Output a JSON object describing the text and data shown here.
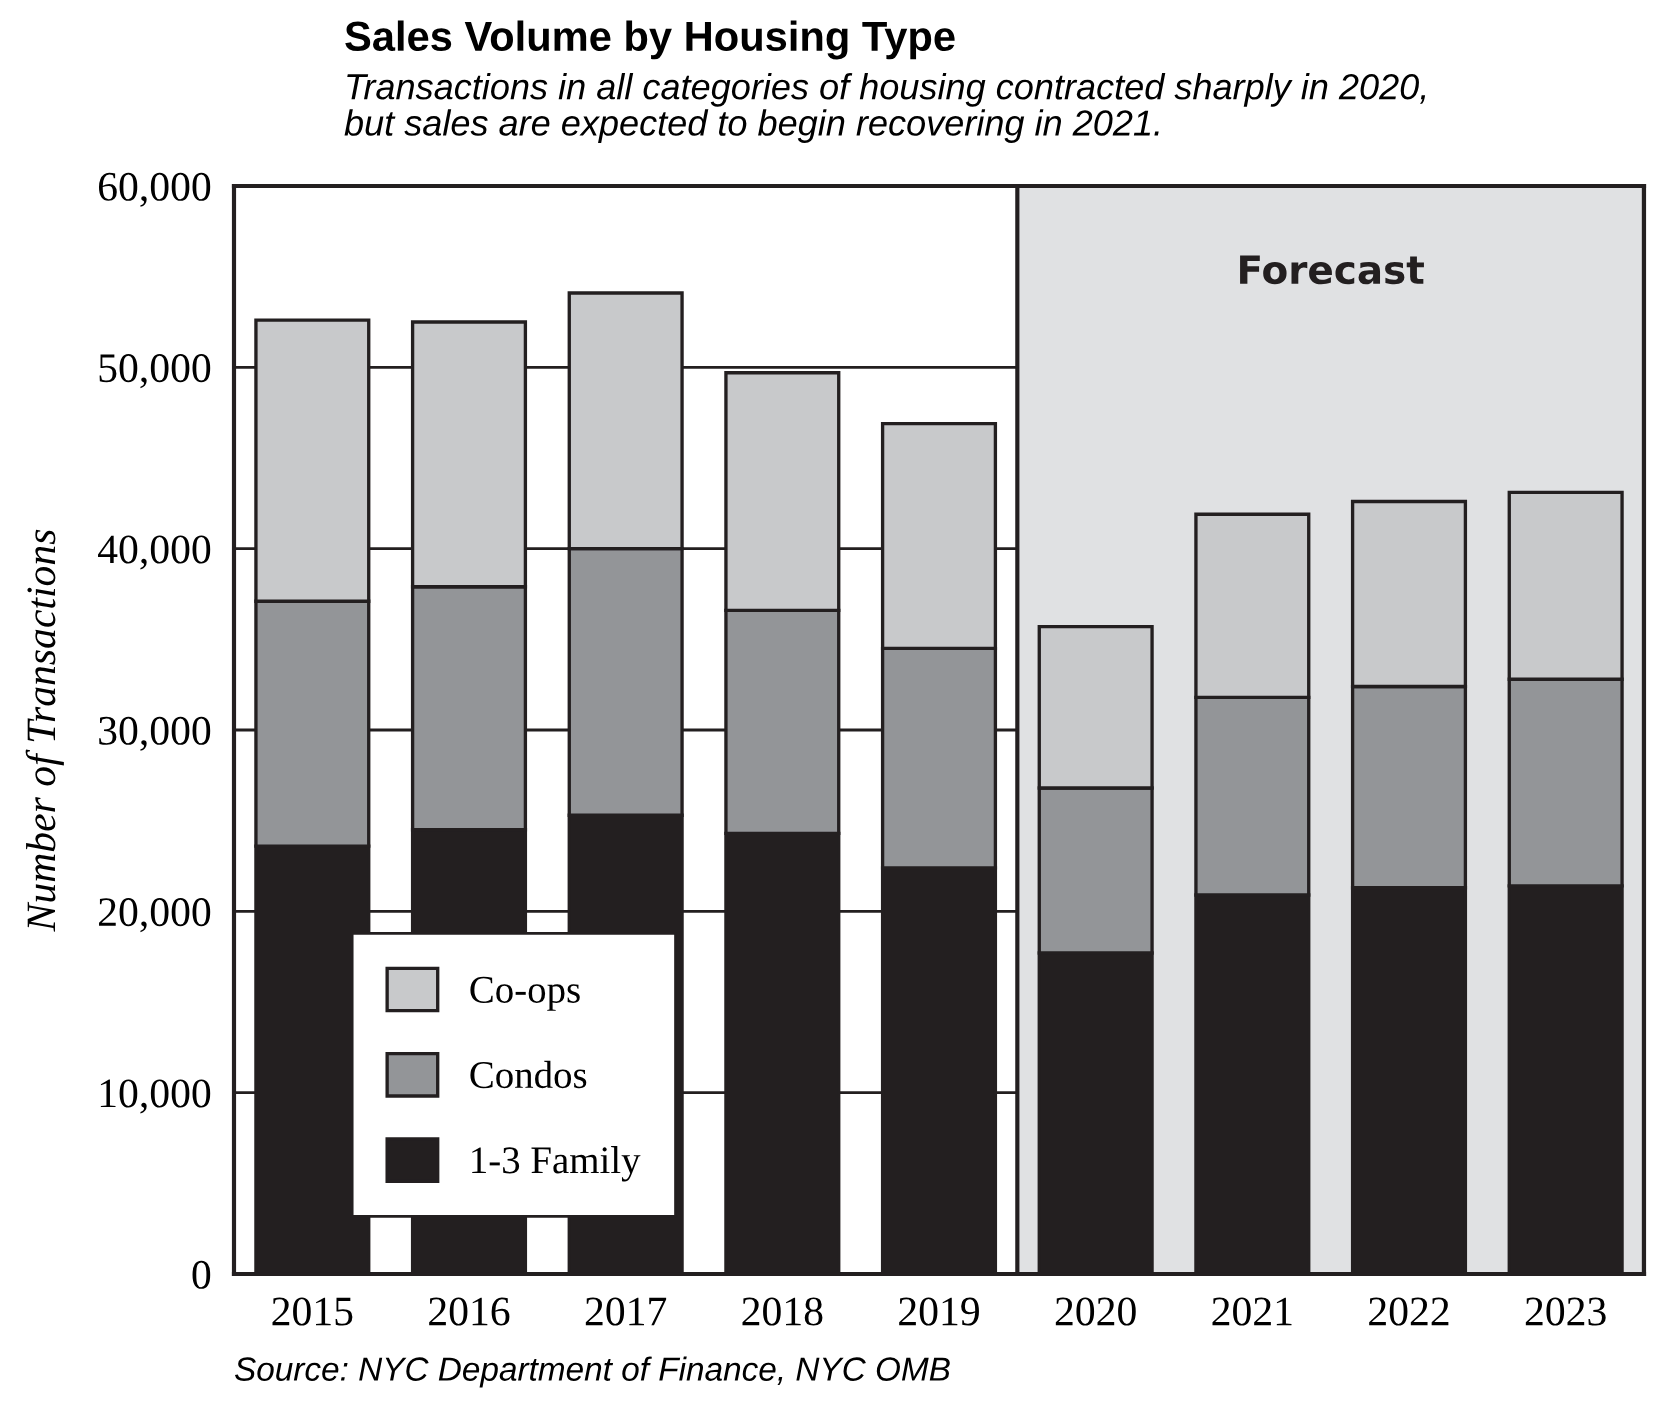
{
  "chart_data": {
    "type": "bar",
    "stacked": true,
    "title": "Sales Volume by Housing Type",
    "subtitle": "Transactions in all categories of housing contracted sharply in 2020,\nbut sales are expected to begin recovering in 2021.",
    "ylabel": "Number of Transactions",
    "categories": [
      "2015",
      "2016",
      "2017",
      "2018",
      "2019",
      "2020",
      "2021",
      "2022",
      "2023"
    ],
    "series": [
      {
        "name": "1-3 Family",
        "color": "#231f20",
        "values": [
          23600,
          24500,
          25300,
          24300,
          22400,
          17700,
          20900,
          21300,
          21400
        ]
      },
      {
        "name": "Condos",
        "color": "#939598",
        "values": [
          13500,
          13400,
          14700,
          12300,
          12100,
          9100,
          10900,
          11100,
          11400
        ]
      },
      {
        "name": "Co-ops",
        "color": "#c8c9cb",
        "values": [
          15500,
          14600,
          14100,
          13100,
          12400,
          8900,
          10100,
          10200,
          10300
        ]
      }
    ],
    "ylim": [
      0,
      60000
    ],
    "yticks": [
      {
        "value": 0,
        "label": "0"
      },
      {
        "value": 10000,
        "label": "10,000"
      },
      {
        "value": 20000,
        "label": "20,000"
      },
      {
        "value": 30000,
        "label": "30,000"
      },
      {
        "value": 40000,
        "label": "40,000"
      },
      {
        "value": 50000,
        "label": "50,000"
      },
      {
        "value": 60000,
        "label": "60,000"
      }
    ],
    "grid": "y",
    "legend": "bottom left",
    "bands": [
      {
        "axis": "x",
        "from": "2020",
        "to": "2023",
        "label": "Forecast",
        "color": "#e0e1e3"
      }
    ],
    "annotations": [
      "Source: NYC Department of Finance, NYC OMB"
    ]
  }
}
